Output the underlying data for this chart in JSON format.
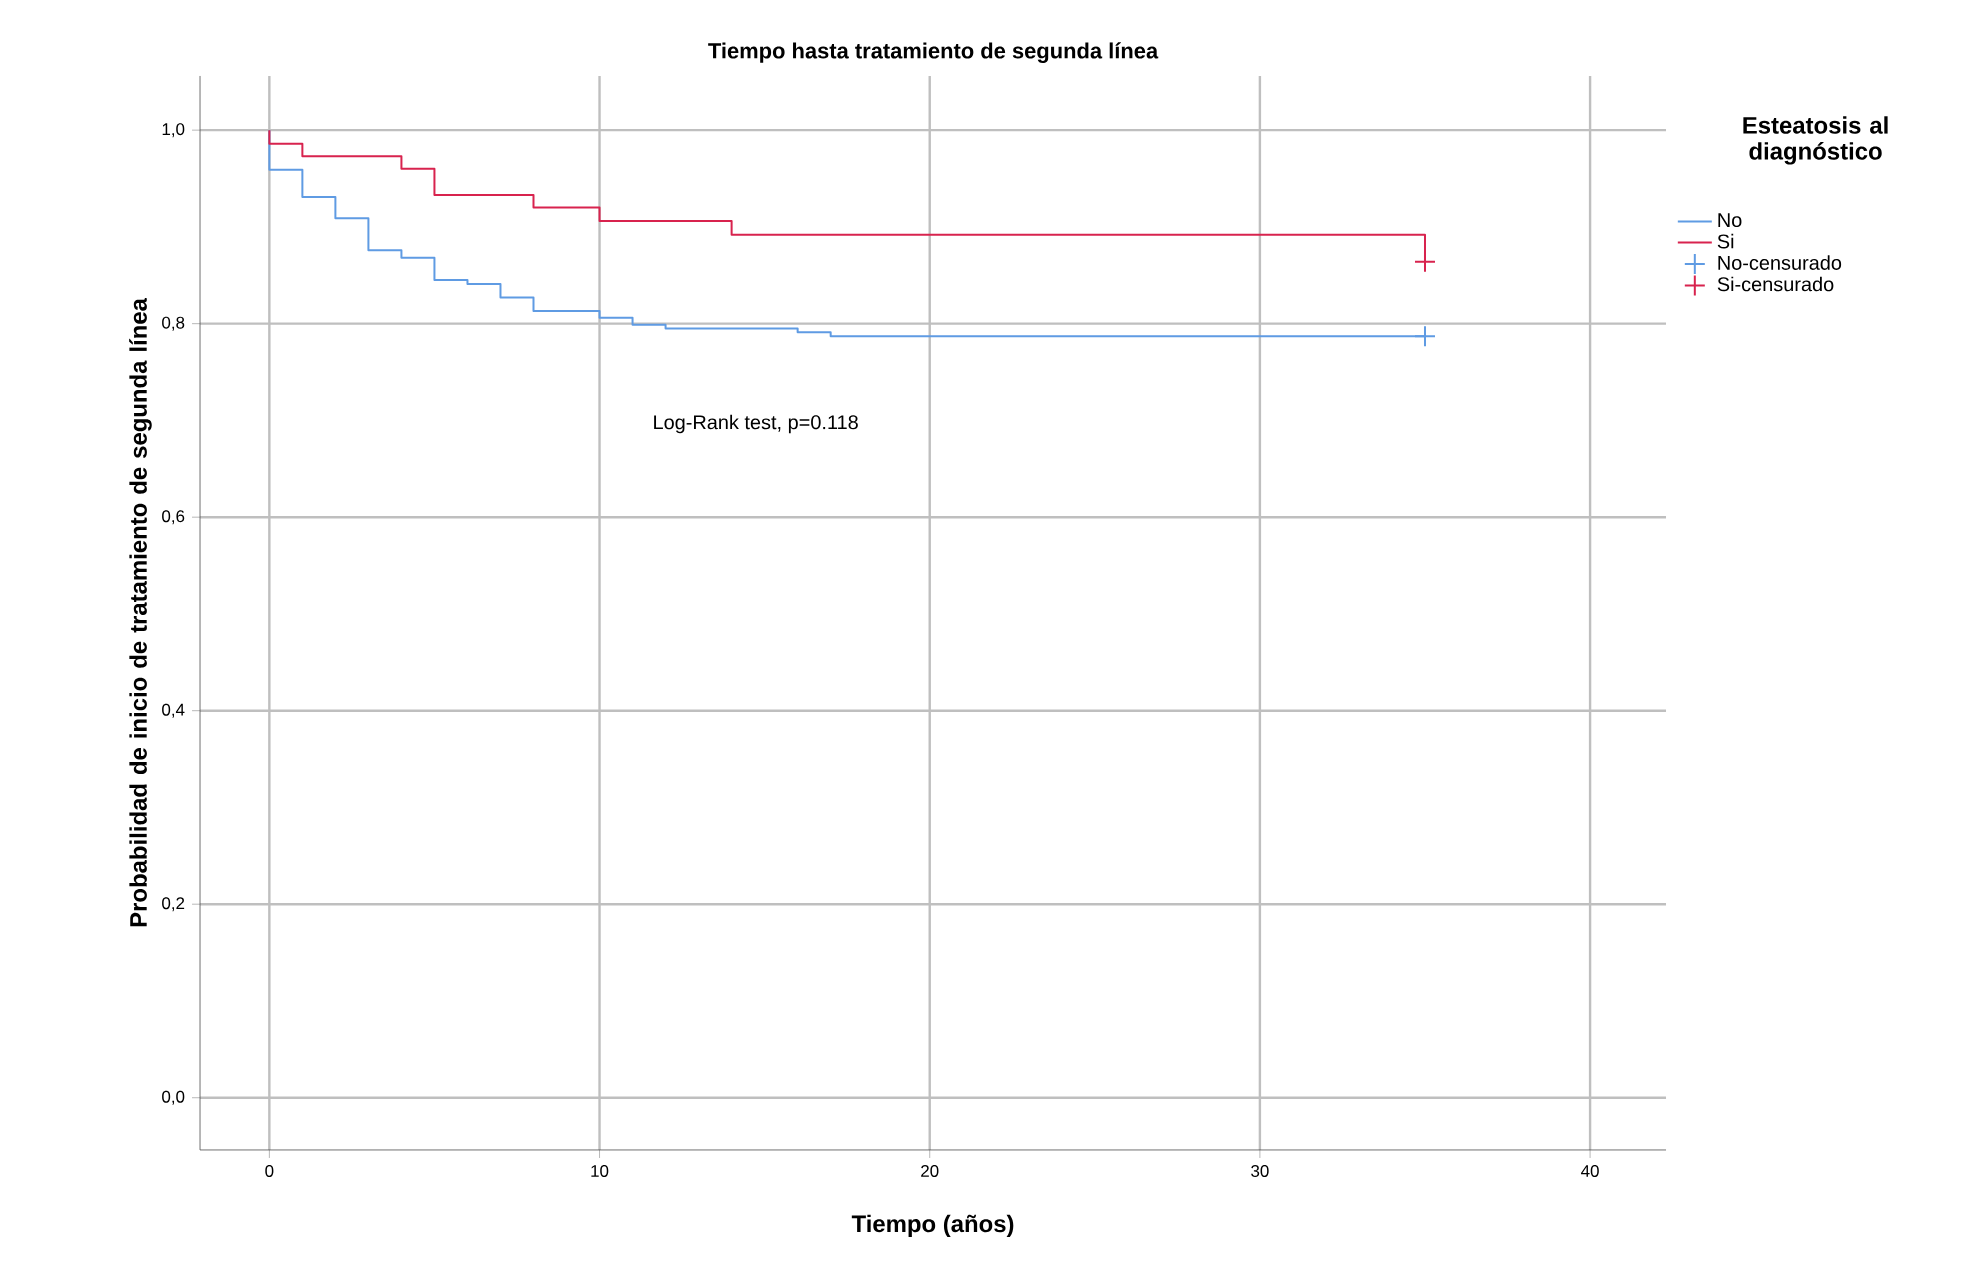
{
  "chart_data": {
    "type": "step",
    "title": "Tiempo hasta tratamiento de segunda línea",
    "xlabel": "Tiempo (años)",
    "ylabel": "Probabilidad de inicio de tratamiento de segunda línea",
    "legend_title": "Esteatosis al diagnóstico",
    "annotations": [
      "Log-Rank test, p=0.118"
    ],
    "series": [
      {
        "name": "No",
        "color": "#5f9be3",
        "x": [
          0,
          0,
          1,
          2,
          3,
          4,
          5,
          6,
          7,
          8,
          10,
          11,
          12,
          16,
          17,
          35
        ],
        "values": [
          1.0,
          0.959,
          0.931,
          0.909,
          0.876,
          0.868,
          0.845,
          0.841,
          0.827,
          0.813,
          0.806,
          0.799,
          0.795,
          0.791,
          0.787,
          0.787
        ]
      },
      {
        "name": "Si",
        "color": "#d8234e",
        "x": [
          0,
          0,
          1,
          4,
          5,
          8,
          10,
          14,
          35
        ],
        "values": [
          1.0,
          0.986,
          0.973,
          0.96,
          0.933,
          0.92,
          0.906,
          0.892,
          0.864
        ]
      },
      {
        "name": "No-censurado",
        "type": "scatter",
        "marker": "cross",
        "color": "#5f9be3",
        "x": [
          35
        ],
        "values": [
          0.787
        ]
      },
      {
        "name": "Si-censurado",
        "type": "scatter",
        "marker": "cross",
        "color": "#d8234e",
        "x": [
          35
        ],
        "values": [
          0.864
        ]
      }
    ],
    "xlim": [
      -2.1,
      42.3
    ],
    "ylim": [
      -0.054,
      1.056
    ],
    "xticks": [
      0,
      10,
      20,
      30,
      40
    ],
    "yticks": [
      {
        "value": 0,
        "label": "0,0"
      },
      {
        "value": 0.2,
        "label": "0,2"
      },
      {
        "value": 0.4,
        "label": "0,4"
      },
      {
        "value": 0.6,
        "label": "0,6"
      },
      {
        "value": 0.8,
        "label": "0,8"
      },
      {
        "value": 1.0,
        "label": "1,0"
      }
    ],
    "grid": true,
    "legend": "right"
  }
}
